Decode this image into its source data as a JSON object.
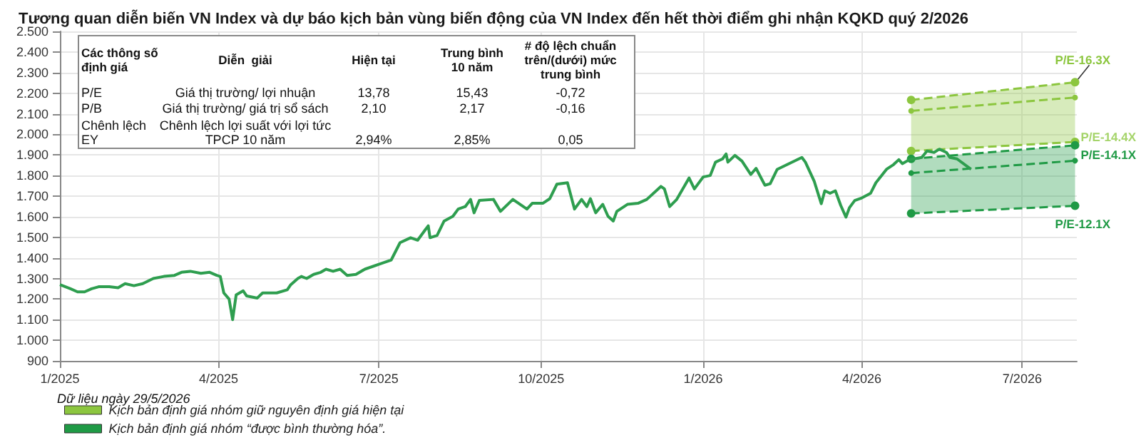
{
  "chart_data": {
    "type": "line",
    "title": "Tương quan diễn biến VN Index và dự báo kịch bản vùng biến động của VN Index đến hết thời điểm ghi nhận KQKD quý 2/2026",
    "xlim": [
      "2025-01-01",
      "2026-08-01"
    ],
    "xticks": [
      {
        "value": "2025-01-01",
        "label": "1/2025"
      },
      {
        "value": "2025-04-01",
        "label": "4/2025"
      },
      {
        "value": "2025-07-01",
        "label": "7/2025"
      },
      {
        "value": "2025-10-01",
        "label": "10/2025"
      },
      {
        "value": "2026-01-01",
        "label": "1/2026"
      },
      {
        "value": "2026-04-01",
        "label": "4/2026"
      },
      {
        "value": "2026-07-01",
        "label": "7/2026"
      }
    ],
    "ylim": [
      900,
      2500
    ],
    "yticks": [
      {
        "value": 900,
        "label": "900"
      },
      {
        "value": 1000,
        "label": "1.000"
      },
      {
        "value": 1100,
        "label": "1.100"
      },
      {
        "value": 1200,
        "label": "1.200"
      },
      {
        "value": 1300,
        "label": "1.300"
      },
      {
        "value": 1400,
        "label": "1.400"
      },
      {
        "value": 1500,
        "label": "1.500"
      },
      {
        "value": 1600,
        "label": "1.600"
      },
      {
        "value": 1700,
        "label": "1.700"
      },
      {
        "value": 1800,
        "label": "1.800"
      },
      {
        "value": 1900,
        "label": "1.900"
      },
      {
        "value": 2000,
        "label": "2.000"
      },
      {
        "value": 2100,
        "label": "2.100"
      },
      {
        "value": 2200,
        "label": "2.200"
      },
      {
        "value": 2300,
        "label": "2.300"
      },
      {
        "value": 2400,
        "label": "2.400"
      },
      {
        "value": 2500,
        "label": "2.500"
      }
    ],
    "grid": true,
    "legend": "bottom left",
    "series": [
      {
        "color": "#2e9e4f",
        "line_style": "solid",
        "marker": "none",
        "x": [
          "2025-01-01",
          "2025-01-07",
          "2025-01-11",
          "2025-01-15",
          "2025-01-19",
          "2025-01-23",
          "2025-01-29",
          "2025-02-03",
          "2025-02-07",
          "2025-02-12",
          "2025-02-17",
          "2025-02-23",
          "2025-03-01",
          "2025-03-07",
          "2025-03-11",
          "2025-03-16",
          "2025-03-22",
          "2025-03-27",
          "2025-03-31",
          "2025-04-02",
          "2025-04-04",
          "2025-04-07",
          "2025-04-09",
          "2025-04-11",
          "2025-04-15",
          "2025-04-17",
          "2025-04-23",
          "2025-04-26",
          "2025-05-04",
          "2025-05-10",
          "2025-05-12",
          "2025-05-16",
          "2025-05-18",
          "2025-05-21",
          "2025-05-25",
          "2025-05-29",
          "2025-06-01",
          "2025-06-05",
          "2025-06-09",
          "2025-06-13",
          "2025-06-18",
          "2025-06-23",
          "2025-07-03",
          "2025-07-08",
          "2025-07-13",
          "2025-07-19",
          "2025-07-23",
          "2025-07-27",
          "2025-07-29",
          "2025-07-30",
          "2025-08-03",
          "2025-08-07",
          "2025-08-12",
          "2025-08-15",
          "2025-08-19",
          "2025-08-22",
          "2025-08-24",
          "2025-08-27",
          "2025-09-04",
          "2025-09-08",
          "2025-09-15",
          "2025-09-23",
          "2025-09-26",
          "2025-10-02",
          "2025-10-06",
          "2025-10-10",
          "2025-10-16",
          "2025-10-20",
          "2025-10-24",
          "2025-10-27",
          "2025-10-29",
          "2025-11-01",
          "2025-11-05",
          "2025-11-08",
          "2025-11-11",
          "2025-11-13",
          "2025-11-19",
          "2025-11-25",
          "2025-11-30",
          "2025-12-08",
          "2025-12-10",
          "2025-12-13",
          "2025-12-17",
          "2025-12-24",
          "2025-12-27",
          "2026-01-01",
          "2026-01-05",
          "2026-01-08",
          "2026-01-12",
          "2026-01-14",
          "2026-01-15",
          "2026-01-19",
          "2026-01-23",
          "2026-01-28",
          "2026-01-31",
          "2026-02-05",
          "2026-02-08",
          "2026-02-12",
          "2026-02-26",
          "2026-02-28",
          "2026-03-05",
          "2026-03-09",
          "2026-03-11",
          "2026-03-14",
          "2026-03-17",
          "2026-03-20",
          "2026-03-23",
          "2026-03-25",
          "2026-03-28",
          "2026-04-01",
          "2026-04-06",
          "2026-04-09",
          "2026-04-15",
          "2026-04-19",
          "2026-04-22",
          "2026-04-24",
          "2026-04-28",
          "2026-05-05",
          "2026-05-08",
          "2026-05-12",
          "2026-05-15",
          "2026-05-19",
          "2026-05-21",
          "2026-05-25",
          "2026-06-02"
        ],
        "values": [
          1270,
          1250,
          1235,
          1235,
          1250,
          1260,
          1260,
          1255,
          1275,
          1265,
          1275,
          1300,
          1310,
          1315,
          1330,
          1335,
          1325,
          1330,
          1315,
          1310,
          1230,
          1200,
          1100,
          1220,
          1240,
          1215,
          1205,
          1230,
          1230,
          1245,
          1270,
          1300,
          1310,
          1300,
          1320,
          1330,
          1345,
          1335,
          1345,
          1315,
          1320,
          1345,
          1375,
          1390,
          1474,
          1498,
          1486,
          1533,
          1556,
          1498,
          1509,
          1579,
          1602,
          1637,
          1649,
          1684,
          1619,
          1679,
          1684,
          1626,
          1684,
          1637,
          1665,
          1665,
          1688,
          1758,
          1765,
          1637,
          1684,
          1649,
          1688,
          1619,
          1660,
          1602,
          1579,
          1626,
          1660,
          1665,
          1684,
          1747,
          1735,
          1649,
          1684,
          1788,
          1735,
          1793,
          1800,
          1865,
          1881,
          1905,
          1865,
          1898,
          1870,
          1805,
          1835,
          1753,
          1760,
          1830,
          1888,
          1865,
          1772,
          1663,
          1726,
          1714,
          1726,
          1656,
          1598,
          1644,
          1679,
          1691,
          1714,
          1765,
          1830,
          1853,
          1877,
          1858,
          1877,
          1888,
          1919,
          1912,
          1928,
          1912,
          1888,
          1881,
          1830
        ]
      },
      {
        "name": "Kịch bản định giá nhóm giữ nguyên định giá hiện tại",
        "color": "#8cc63f",
        "line_style": "dashed",
        "marker": "circle",
        "x": [
          "2026-04-29",
          "2026-07-31"
        ],
        "values": [
          2114,
          2179
        ],
        "lower": [
          1919,
          1963
        ],
        "upper": [
          2167,
          2253
        ]
      },
      {
        "name": "Kịch bản định giá nhóm “được bình thường hóa”.",
        "color": "#1f9a45",
        "line_style": "dashed",
        "marker": "circle",
        "x": [
          "2026-04-29",
          "2026-07-31"
        ],
        "values": [
          1812,
          1872
        ],
        "lower": [
          1616,
          1653
        ],
        "upper": [
          1881,
          1947
        ]
      }
    ],
    "annotations": [
      "Dữ liệu ngày 29/5/2026",
      "Các thông số\nđịnh giá",
      "Diễn  giải",
      "Hiện tại",
      "Trung bình\n10 năm",
      "# độ lệch chuẩn\ntrên/(dưới) mức\ntrung bình",
      "P/E",
      "Giá thị trường/ lợi nhuận",
      "13,78",
      "15,43",
      "-0,72",
      "P/B",
      "Giá thị trường/ giá trị sổ sách",
      "2,10",
      "2,17",
      "-0,16",
      "Chênh lệch\nEY",
      "Chênh lệch lợi suất với lợi tức\nTPCP 10 năm",
      "2,94%",
      "2,85%",
      "0,05",
      {
        "text": "P/E-16.3X",
        "x": "2026-07-31",
        "y": 2253
      },
      {
        "text": "P/E-14.4X",
        "x": "2026-07-31",
        "y": 1963
      },
      {
        "text": "P/E-14.1X",
        "x": "2026-07-31",
        "y": 1947
      },
      {
        "text": "P/E-12.1X",
        "x": "2026-07-31",
        "y": 1653
      }
    ]
  }
}
